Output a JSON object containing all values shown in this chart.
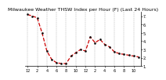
{
  "title": "Milwaukee Weather THSW Index per Hour (F) (Last 24 Hours)",
  "title_fontsize": 4.5,
  "title_color": "#000000",
  "background_color": "#ffffff",
  "plot_bg_color": "#ffffff",
  "line_color": "#cc0000",
  "marker_color": "#111111",
  "grid_color": "#999999",
  "hours": [
    0,
    1,
    2,
    3,
    4,
    5,
    6,
    7,
    8,
    9,
    10,
    11,
    12,
    13,
    14,
    15,
    16,
    17,
    18,
    19,
    20,
    21,
    22,
    23
  ],
  "values": [
    72,
    70,
    68,
    50,
    28,
    18,
    14,
    13,
    13,
    22,
    26,
    30,
    28,
    45,
    38,
    42,
    36,
    33,
    27,
    25,
    24,
    23,
    22,
    21
  ],
  "ylim": [
    10,
    75
  ],
  "ytick_values": [
    70,
    60,
    50,
    40,
    30,
    20,
    10
  ],
  "ytick_labels": [
    "7.",
    "6.",
    "5.",
    "4.",
    "3.",
    "2.",
    "1."
  ],
  "ylabel_fontsize": 3.5,
  "xtick_fontsize": 3.5,
  "xlim": [
    -0.5,
    23.5
  ],
  "xtick_positions": [
    0,
    2,
    4,
    6,
    8,
    10,
    12,
    14,
    16,
    18,
    20,
    22
  ],
  "xtick_labels": [
    "12",
    "2",
    "4",
    "6",
    "8",
    "10",
    "12",
    "2",
    "4",
    "6",
    "8",
    "10"
  ],
  "vgrid_positions": [
    0,
    2,
    4,
    6,
    8,
    10,
    12,
    14,
    16,
    18,
    20,
    22
  ]
}
